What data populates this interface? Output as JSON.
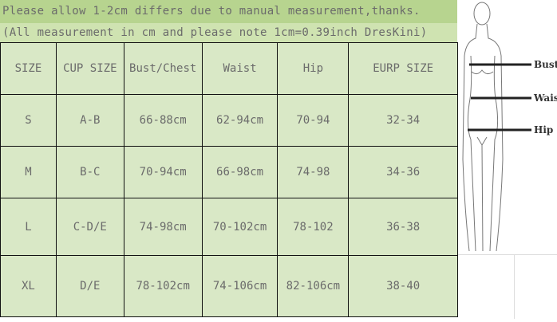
{
  "notes": {
    "line1": "Please allow 1-2cm differs due to manual measurement,thanks.",
    "line2": "(All measurement in cm and please note 1cm=0.39inch DresKini)"
  },
  "table": {
    "headers": [
      "SIZE",
      "CUP SIZE",
      "Bust/Chest",
      "Waist",
      "Hip",
      "EURP SIZE"
    ],
    "rows": [
      [
        "S",
        "A-B",
        "66-88cm",
        "62-94cm",
        "70-94",
        "32-34"
      ],
      [
        "M",
        "B-C",
        "70-94cm",
        "66-98cm",
        "74-98",
        "34-36"
      ],
      [
        "L",
        "C-D/E",
        "74-98cm",
        "70-102cm",
        "78-102",
        "36-38"
      ],
      [
        "XL",
        "D/E",
        "78-102cm",
        "74-106cm",
        "82-106cm",
        "38-40"
      ]
    ]
  },
  "figure": {
    "labels": [
      "Bust",
      "Waist",
      "Hip"
    ]
  },
  "colors": {
    "title_bg": "#b7d48f",
    "subtitle_bg": "#cfe3b1",
    "cell_bg": "#d9e8c6",
    "text": "#6b6b6b"
  }
}
